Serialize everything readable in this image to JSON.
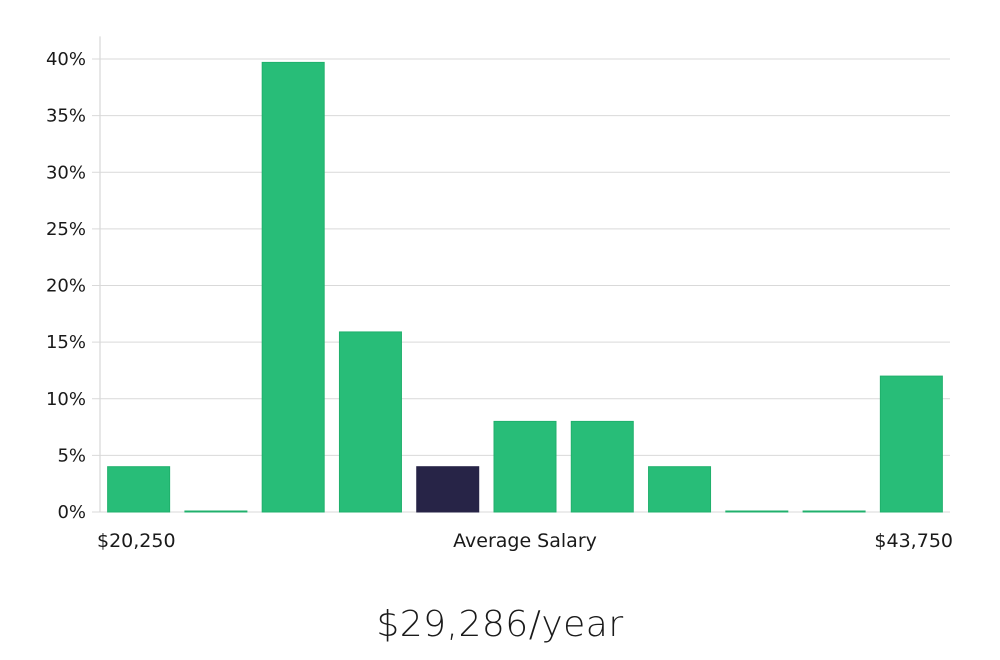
{
  "chart_data": {
    "type": "bar",
    "title": "",
    "xlabel": "Average Salary",
    "ylabel": "",
    "ylim": [
      0,
      42
    ],
    "y_ticks": [
      0,
      5,
      10,
      15,
      20,
      25,
      30,
      35,
      40
    ],
    "y_tick_format": "percent",
    "x_range_labels": {
      "min": "$20,250",
      "center": "Average Salary",
      "max": "$43,750"
    },
    "values": [
      4,
      0,
      39.7,
      15.9,
      4,
      8,
      8,
      4,
      0,
      0,
      12
    ],
    "highlight_index": 4,
    "grid": true,
    "legend": "none"
  },
  "colors": {
    "bar": "#28bd78",
    "bar_stroke": "#20b06c",
    "highlight": "#272447",
    "grid": "#d9d9d9",
    "axis": "#cfcfcf"
  },
  "caption": {
    "average_salary": "$29,286/year"
  }
}
